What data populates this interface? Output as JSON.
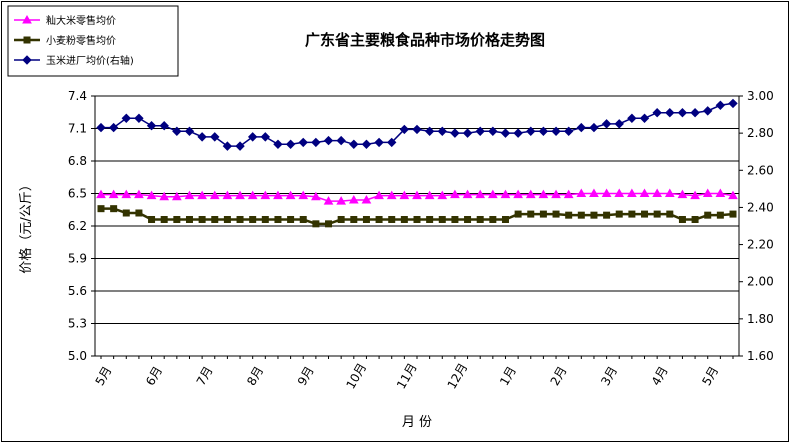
{
  "chart_data": {
    "type": "line",
    "title": "广东省主要粮食品种市场价格走势图",
    "xlabel": "月  份",
    "ylabel": "价格（元/公斤）",
    "x_tick_labels": [
      "5月",
      "6月",
      "7月",
      "8月",
      "9月",
      "10月",
      "11月",
      "12月",
      "1月",
      "2月",
      "3月",
      "4月",
      "5月"
    ],
    "x_tick_index": [
      0,
      4,
      8,
      12,
      16,
      20,
      24,
      28,
      32,
      36,
      40,
      44,
      48
    ],
    "ylim_left": [
      5.0,
      7.4
    ],
    "yticks_left": [
      "5.0",
      "5.3",
      "5.6",
      "5.9",
      "6.2",
      "6.5",
      "6.8",
      "7.1",
      "7.4"
    ],
    "ylim_right": [
      1.6,
      3.0
    ],
    "yticks_right": [
      "1.60",
      "1.80",
      "2.00",
      "2.20",
      "2.40",
      "2.60",
      "2.80",
      "3.00"
    ],
    "grid": "horizontal",
    "legend_position": "top-left",
    "series": [
      {
        "name": "籼大米零售均价",
        "axis": "left",
        "color": "#ff00ff",
        "marker": "triangle",
        "values": [
          6.49,
          6.49,
          6.49,
          6.49,
          6.48,
          6.47,
          6.47,
          6.48,
          6.48,
          6.48,
          6.48,
          6.48,
          6.48,
          6.48,
          6.48,
          6.48,
          6.48,
          6.47,
          6.43,
          6.43,
          6.44,
          6.44,
          6.48,
          6.48,
          6.48,
          6.48,
          6.48,
          6.48,
          6.49,
          6.49,
          6.49,
          6.49,
          6.49,
          6.49,
          6.49,
          6.49,
          6.49,
          6.49,
          6.5,
          6.5,
          6.5,
          6.5,
          6.5,
          6.5,
          6.5,
          6.5,
          6.49,
          6.48,
          6.5,
          6.5,
          6.48
        ]
      },
      {
        "name": "小麦粉零售均价",
        "axis": "left",
        "color": "#333300",
        "marker": "square",
        "values": [
          6.36,
          6.36,
          6.32,
          6.32,
          6.26,
          6.26,
          6.26,
          6.26,
          6.26,
          6.26,
          6.26,
          6.26,
          6.26,
          6.26,
          6.26,
          6.26,
          6.26,
          6.22,
          6.22,
          6.26,
          6.26,
          6.26,
          6.26,
          6.26,
          6.26,
          6.26,
          6.26,
          6.26,
          6.26,
          6.26,
          6.26,
          6.26,
          6.26,
          6.31,
          6.31,
          6.31,
          6.31,
          6.3,
          6.3,
          6.3,
          6.3,
          6.31,
          6.31,
          6.31,
          6.31,
          6.31,
          6.26,
          6.26,
          6.3,
          6.3,
          6.31
        ]
      },
      {
        "name": "玉米进厂均价(右轴)",
        "axis": "right",
        "color": "#000080",
        "marker": "diamond",
        "values": [
          2.83,
          2.83,
          2.88,
          2.88,
          2.84,
          2.84,
          2.81,
          2.81,
          2.78,
          2.78,
          2.73,
          2.73,
          2.78,
          2.78,
          2.74,
          2.74,
          2.75,
          2.75,
          2.76,
          2.76,
          2.74,
          2.74,
          2.75,
          2.75,
          2.82,
          2.82,
          2.81,
          2.81,
          2.8,
          2.8,
          2.81,
          2.81,
          2.8,
          2.8,
          2.81,
          2.81,
          2.81,
          2.81,
          2.83,
          2.83,
          2.85,
          2.85,
          2.88,
          2.88,
          2.91,
          2.91,
          2.91,
          2.91,
          2.92,
          2.95,
          2.96
        ]
      }
    ]
  }
}
